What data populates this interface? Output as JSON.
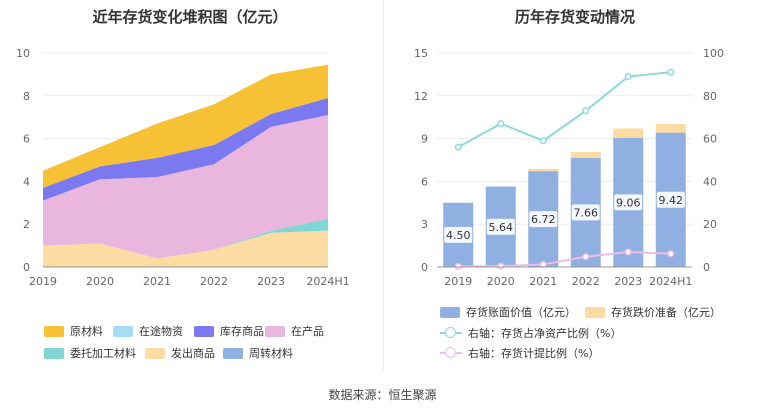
{
  "left_title": "近年存货变化堆积图（亿元）",
  "right_title": "历年存货变动情况",
  "source": "数据来源：恒生聚源",
  "legend_left": [
    {
      "label": "原材料",
      "color": "#f7c136"
    },
    {
      "label": "在途物资",
      "color": "#a8dcf5"
    },
    {
      "label": "库存商品",
      "color": "#7b79f0"
    },
    {
      "label": "在产品",
      "color": "#e9b7de"
    },
    {
      "label": "委托加工材料",
      "color": "#7fd6d4"
    },
    {
      "label": "发出商品",
      "color": "#fddca3"
    },
    {
      "label": "周转材料",
      "color": "#8fb0e0"
    }
  ],
  "legend_right": {
    "bar1": "存货账面价值（亿元）",
    "bar2": "存货跌价准备（亿元）",
    "line1": "右轴：存货占净资产比例（%）",
    "line2": "右轴：存货计提比例（%）"
  },
  "colors": {
    "bar_value": "#8fb0e0",
    "bar_reserve": "#fddca3",
    "line_ratio": "#8fd8dd",
    "line_provision": "#eebde6"
  },
  "chart_data": [
    {
      "type": "area",
      "stacked": true,
      "title": "近年存货变化堆积图（亿元）",
      "categories": [
        "2019",
        "2020",
        "2021",
        "2022",
        "2023",
        "2024H1"
      ],
      "ylim": [
        0,
        10
      ],
      "yticks": [
        0,
        2,
        4,
        6,
        8,
        10
      ],
      "grid": true,
      "legend_position": "bottom",
      "series": [
        {
          "name": "发出商品",
          "color": "#fddca3",
          "values": [
            1.0,
            1.1,
            0.4,
            0.8,
            1.6,
            1.7
          ]
        },
        {
          "name": "委托加工材料",
          "color": "#7fd6d4",
          "values": [
            0.0,
            0.0,
            0.0,
            0.0,
            0.1,
            0.55
          ]
        },
        {
          "name": "在产品",
          "color": "#e9b7de",
          "values": [
            2.1,
            3.0,
            3.8,
            4.0,
            4.85,
            4.85
          ]
        },
        {
          "name": "库存商品",
          "color": "#7b79f0",
          "values": [
            0.6,
            0.6,
            0.9,
            0.9,
            0.6,
            0.8
          ]
        },
        {
          "name": "原材料",
          "color": "#f7c136",
          "values": [
            0.8,
            0.9,
            1.6,
            1.9,
            1.85,
            1.55
          ]
        }
      ]
    },
    {
      "type": "bar",
      "stacked": true,
      "title": "历年存货变动情况",
      "categories": [
        "2019",
        "2020",
        "2021",
        "2022",
        "2023",
        "2024H1"
      ],
      "ylim": [
        0,
        15
      ],
      "yticks": [
        0,
        3,
        6,
        9,
        12,
        15
      ],
      "y2lim": [
        0,
        100
      ],
      "y2ticks": [
        0,
        20,
        40,
        60,
        80,
        100
      ],
      "legend_position": "bottom",
      "series": [
        {
          "name": "存货账面价值（亿元）",
          "axis": "left",
          "values": [
            4.5,
            5.64,
            6.72,
            7.66,
            9.06,
            9.42
          ]
        },
        {
          "name": "存货跌价准备（亿元）",
          "axis": "left",
          "values": [
            0.0,
            0.0,
            0.15,
            0.4,
            0.65,
            0.6
          ]
        },
        {
          "name": "右轴：存货占净资产比例（%）",
          "type": "line",
          "axis": "right",
          "values": [
            56,
            67,
            59,
            73,
            89,
            91
          ]
        },
        {
          "name": "右轴：存货计提比例（%）",
          "type": "line",
          "axis": "right",
          "values": [
            0.3,
            0.4,
            1.2,
            4.8,
            7,
            6.2
          ]
        }
      ],
      "labels": [
        "4.50",
        "5.64",
        "6.72",
        "7.66",
        "9.06",
        "9.42"
      ]
    }
  ]
}
